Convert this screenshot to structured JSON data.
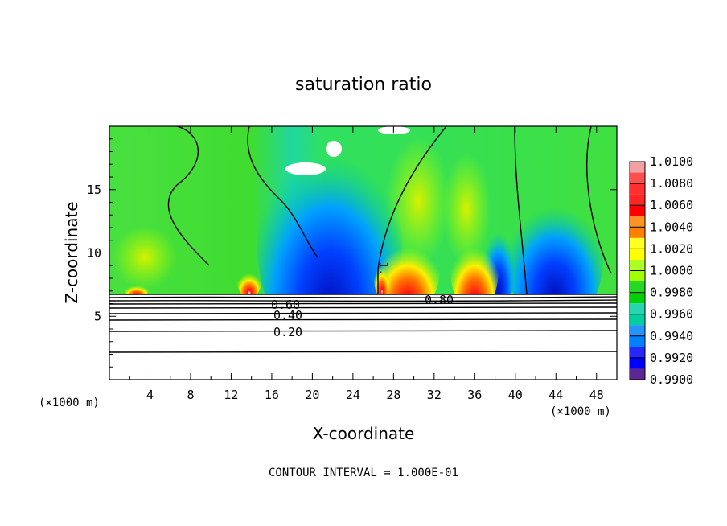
{
  "chart_data": {
    "type": "heatmap",
    "title": "saturation ratio",
    "xlabel": "X-coordinate",
    "ylabel": "Z-coordinate",
    "x_unit_left": "(×1000 m)",
    "x_unit_right": "(×1000 m)",
    "xlim": [
      0,
      50
    ],
    "ylim": [
      0,
      20
    ],
    "xticks": [
      4,
      8,
      12,
      16,
      20,
      24,
      28,
      32,
      36,
      40,
      44,
      48
    ],
    "yticks": [
      5,
      10,
      15
    ],
    "colorbar": {
      "levels": [
        1.01,
        1.008,
        1.006,
        1.004,
        1.002,
        1.0,
        0.998,
        0.996,
        0.994,
        0.992,
        0.99
      ],
      "labels": [
        "1.0100",
        "1.0080",
        "1.0060",
        "1.0040",
        "1.0020",
        "1.0000",
        "0.9980",
        "0.9960",
        "0.9940",
        "0.9920",
        "0.9900"
      ],
      "colors": [
        "#f0a0a0",
        "#ff3030",
        "#ff0000",
        "#ff8000",
        "#ffff00",
        "#a0ff00",
        "#00d000",
        "#00d0a0",
        "#0080ff",
        "#0000ff",
        "#400080"
      ]
    },
    "contour_labels": [
      "0.60",
      "0.40",
      "0.20",
      "0.80",
      "1."
    ],
    "footer": "CONTOUR INTERVAL = 1.000E-01"
  }
}
